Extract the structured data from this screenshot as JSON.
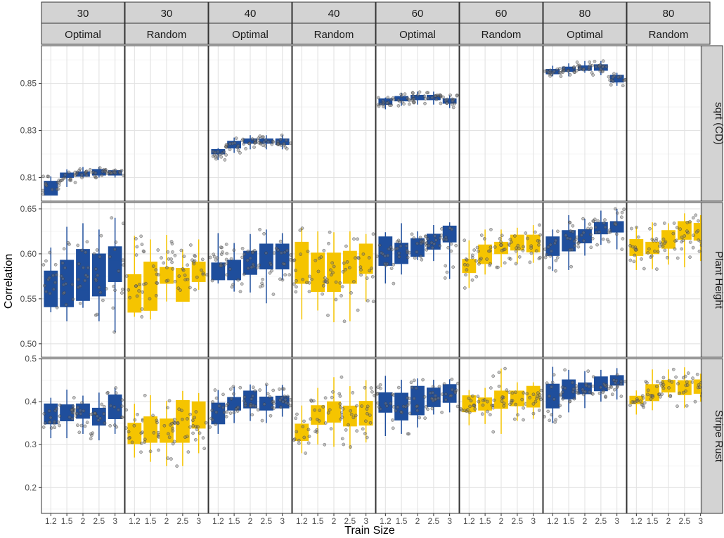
{
  "chart_data": {
    "type": "boxplot",
    "xlabel": "Train Size",
    "ylabel": "Correlation",
    "x_categories": [
      "1.2",
      "1.5",
      "2",
      "2.5",
      "3"
    ],
    "facet_columns": [
      {
        "top": "30",
        "bottom": "Optimal",
        "method": "Optimal"
      },
      {
        "top": "30",
        "bottom": "Random",
        "method": "Random"
      },
      {
        "top": "40",
        "bottom": "Optimal",
        "method": "Optimal"
      },
      {
        "top": "40",
        "bottom": "Random",
        "method": "Random"
      },
      {
        "top": "60",
        "bottom": "Optimal",
        "method": "Optimal"
      },
      {
        "top": "60",
        "bottom": "Random",
        "method": "Random"
      },
      {
        "top": "80",
        "bottom": "Optimal",
        "method": "Optimal"
      },
      {
        "top": "80",
        "bottom": "Random",
        "method": "Random"
      }
    ],
    "colors": {
      "Optimal": "#1f4e9c",
      "Random": "#f5c400",
      "point": "#555555",
      "strip": "#d3d3d3",
      "grid": "#e3e3e3"
    },
    "rows": [
      {
        "label": "sqrt (CD)",
        "ylim": [
          0.8,
          0.866
        ],
        "ticks": [
          0.81,
          0.83,
          0.85
        ],
        "tick_labels": [
          "0.81",
          "0.83",
          "0.85"
        ],
        "panels": [
          [
            [
              0.803,
              0.8025,
              0.806,
              0.8085,
              0.8105
            ],
            [
              0.806,
              0.81,
              0.811,
              0.812,
              0.8135
            ],
            [
              0.81,
              0.8105,
              0.811,
              0.8125,
              0.8145
            ],
            [
              0.81,
              0.811,
              0.812,
              0.8135,
              0.8145
            ],
            [
              0.81,
              0.811,
              0.812,
              0.813,
              0.8135
            ]
          ],
          null,
          [
            [
              0.8175,
              0.82,
              0.8205,
              0.822,
              0.8225
            ],
            [
              0.8205,
              0.8225,
              0.824,
              0.8255,
              0.827
            ],
            [
              0.822,
              0.8245,
              0.825,
              0.8265,
              0.828
            ],
            [
              0.822,
              0.8245,
              0.8255,
              0.8265,
              0.828
            ],
            [
              0.822,
              0.824,
              0.825,
              0.8265,
              0.828
            ]
          ],
          null,
          [
            [
              0.839,
              0.841,
              0.8425,
              0.8435,
              0.844
            ],
            [
              0.8405,
              0.8425,
              0.8435,
              0.8445,
              0.846
            ],
            [
              0.841,
              0.843,
              0.8445,
              0.845,
              0.8465
            ],
            [
              0.841,
              0.843,
              0.8445,
              0.845,
              0.8465
            ],
            [
              0.8395,
              0.8415,
              0.842,
              0.8435,
              0.845
            ]
          ],
          null,
          [
            [
              0.853,
              0.854,
              0.855,
              0.856,
              0.8575
            ],
            [
              0.853,
              0.855,
              0.856,
              0.857,
              0.8585
            ],
            [
              0.8545,
              0.8555,
              0.857,
              0.8575,
              0.8595
            ],
            [
              0.8535,
              0.8555,
              0.8565,
              0.858,
              0.8595
            ],
            [
              0.849,
              0.8505,
              0.8515,
              0.8535,
              0.8545
            ]
          ],
          null
        ]
      },
      {
        "label": "Plant Height",
        "ylim": [
          0.485,
          0.657
        ],
        "ticks": [
          0.5,
          0.55,
          0.6,
          0.65
        ],
        "tick_labels": [
          "0.50",
          "0.55",
          "0.60",
          "0.65"
        ],
        "panels": [
          [
            [
              0.535,
              0.541,
              0.568,
              0.581,
              0.607
            ],
            [
              0.525,
              0.541,
              0.565,
              0.593,
              0.63
            ],
            [
              0.54,
              0.548,
              0.56,
              0.605,
              0.634
            ],
            [
              0.525,
              0.553,
              0.575,
              0.6,
              0.627
            ],
            [
              0.513,
              0.569,
              0.592,
              0.608,
              0.64
            ]
          ],
          [
            [
              0.53,
              0.535,
              0.56,
              0.577,
              0.62
            ],
            [
              0.527,
              0.537,
              0.562,
              0.591,
              0.616
            ],
            [
              0.547,
              0.567,
              0.575,
              0.585,
              0.621
            ],
            [
              0.547,
              0.547,
              0.573,
              0.584,
              0.605
            ],
            [
              0.56,
              0.569,
              0.582,
              0.591,
              0.616
            ]
          ],
          [
            [
              0.567,
              0.571,
              0.584,
              0.59,
              0.623
            ],
            [
              0.558,
              0.571,
              0.582,
              0.593,
              0.612
            ],
            [
              0.557,
              0.577,
              0.594,
              0.603,
              0.622
            ],
            [
              0.545,
              0.583,
              0.598,
              0.611,
              0.627
            ],
            [
              0.571,
              0.583,
              0.6,
              0.611,
              0.623
            ]
          ],
          [
            [
              0.527,
              0.567,
              0.584,
              0.613,
              0.629
            ],
            [
              0.537,
              0.558,
              0.578,
              0.601,
              0.625
            ],
            [
              0.524,
              0.558,
              0.579,
              0.601,
              0.624
            ],
            [
              0.525,
              0.567,
              0.587,
              0.603,
              0.625
            ],
            [
              0.547,
              0.578,
              0.587,
              0.611,
              0.622
            ]
          ],
          [
            [
              0.567,
              0.587,
              0.606,
              0.619,
              0.624
            ],
            [
              0.577,
              0.589,
              0.603,
              0.612,
              0.634
            ],
            [
              0.593,
              0.597,
              0.607,
              0.617,
              0.625
            ],
            [
              0.592,
              0.605,
              0.612,
              0.622,
              0.632
            ],
            [
              0.572,
              0.613,
              0.62,
              0.631,
              0.635
            ]
          ],
          [
            [
              0.562,
              0.579,
              0.589,
              0.594,
              0.615
            ],
            [
              0.577,
              0.589,
              0.601,
              0.61,
              0.627
            ],
            [
              0.585,
              0.6,
              0.608,
              0.613,
              0.627
            ],
            [
              0.589,
              0.604,
              0.611,
              0.621,
              0.629
            ],
            [
              0.59,
              0.602,
              0.612,
              0.621,
              0.632
            ]
          ],
          [
            [
              0.581,
              0.598,
              0.608,
              0.619,
              0.627
            ],
            [
              0.582,
              0.603,
              0.617,
              0.626,
              0.643
            ],
            [
              0.598,
              0.612,
              0.618,
              0.627,
              0.639
            ],
            [
              0.61,
              0.622,
              0.631,
              0.635,
              0.648
            ],
            [
              0.605,
              0.624,
              0.633,
              0.636,
              0.65
            ]
          ],
          [
            [
              0.582,
              0.598,
              0.607,
              0.616,
              0.63
            ],
            [
              0.583,
              0.6,
              0.607,
              0.613,
              0.635
            ],
            [
              0.588,
              0.606,
              0.612,
              0.626,
              0.634
            ],
            [
              0.585,
              0.616,
              0.625,
              0.636,
              0.645
            ],
            [
              0.592,
              0.615,
              0.626,
              0.634,
              0.643
            ]
          ]
        ]
      },
      {
        "label": "Stripe Rust",
        "ylim": [
          0.14,
          0.5
        ],
        "ticks": [
          0.2,
          0.3,
          0.4,
          0.5
        ],
        "tick_labels": [
          "0.2",
          "0.3",
          "0.4",
          "0.5"
        ],
        "panels": [
          [
            [
              0.315,
              0.348,
              0.378,
              0.395,
              0.409
            ],
            [
              0.315,
              0.355,
              0.379,
              0.393,
              0.428
            ],
            [
              0.325,
              0.361,
              0.375,
              0.395,
              0.414
            ],
            [
              0.31,
              0.345,
              0.368,
              0.385,
              0.421
            ],
            [
              0.325,
              0.36,
              0.387,
              0.416,
              0.432
            ]
          ],
          [
            [
              0.27,
              0.302,
              0.326,
              0.35,
              0.395
            ],
            [
              0.26,
              0.305,
              0.34,
              0.365,
              0.415
            ],
            [
              0.25,
              0.305,
              0.34,
              0.36,
              0.402
            ],
            [
              0.25,
              0.305,
              0.345,
              0.403,
              0.425
            ],
            [
              0.28,
              0.338,
              0.357,
              0.4,
              0.42
            ]
          ],
          [
            [
              0.325,
              0.348,
              0.384,
              0.397,
              0.427
            ],
            [
              0.35,
              0.38,
              0.394,
              0.41,
              0.435
            ],
            [
              0.355,
              0.385,
              0.41,
              0.425,
              0.44
            ],
            [
              0.35,
              0.38,
              0.398,
              0.411,
              0.44
            ],
            [
              0.365,
              0.385,
              0.401,
              0.413,
              0.439
            ]
          ],
          [
            [
              0.28,
              0.309,
              0.328,
              0.348,
              0.391
            ],
            [
              0.3,
              0.347,
              0.372,
              0.391,
              0.432
            ],
            [
              0.295,
              0.352,
              0.382,
              0.4,
              0.457
            ],
            [
              0.29,
              0.343,
              0.361,
              0.39,
              0.436
            ],
            [
              0.305,
              0.345,
              0.381,
              0.401,
              0.45
            ]
          ],
          [
            [
              0.32,
              0.375,
              0.408,
              0.421,
              0.46
            ],
            [
              0.325,
              0.357,
              0.405,
              0.42,
              0.451
            ],
            [
              0.34,
              0.369,
              0.414,
              0.436,
              0.454
            ],
            [
              0.37,
              0.388,
              0.419,
              0.432,
              0.451
            ],
            [
              0.375,
              0.398,
              0.435,
              0.44,
              0.452
            ]
          ],
          [
            [
              0.345,
              0.376,
              0.392,
              0.414,
              0.427
            ],
            [
              0.348,
              0.38,
              0.393,
              0.409,
              0.432
            ],
            [
              0.325,
              0.384,
              0.4,
              0.425,
              0.477
            ],
            [
              0.355,
              0.39,
              0.413,
              0.425,
              0.445
            ],
            [
              0.36,
              0.387,
              0.403,
              0.436,
              0.445
            ]
          ],
          [
            [
              0.35,
              0.385,
              0.425,
              0.441,
              0.481
            ],
            [
              0.375,
              0.406,
              0.422,
              0.451,
              0.474
            ],
            [
              0.385,
              0.418,
              0.434,
              0.444,
              0.471
            ],
            [
              0.4,
              0.425,
              0.447,
              0.458,
              0.474
            ],
            [
              0.405,
              0.438,
              0.46,
              0.461,
              0.478
            ]
          ],
          [
            [
              0.37,
              0.395,
              0.408,
              0.413,
              0.426
            ],
            [
              0.38,
              0.402,
              0.422,
              0.44,
              0.475
            ],
            [
              0.41,
              0.422,
              0.437,
              0.45,
              0.475
            ],
            [
              0.385,
              0.416,
              0.43,
              0.449,
              0.48
            ],
            [
              0.4,
              0.419,
              0.439,
              0.451,
              0.465
            ]
          ]
        ]
      }
    ]
  }
}
